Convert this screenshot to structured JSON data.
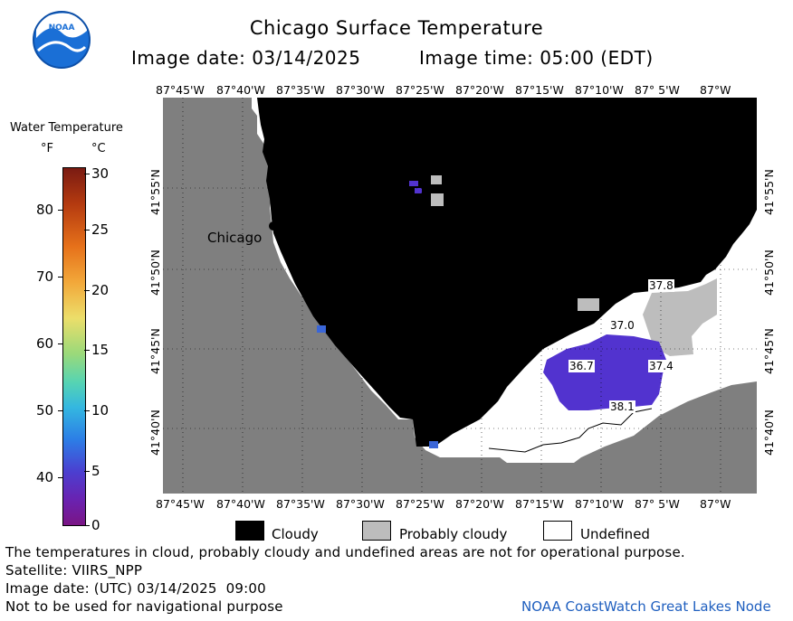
{
  "header": {
    "title": "Chicago Surface Temperature",
    "image_date_label": "Image date: 03/14/2025",
    "image_time_label": "Image time: 05:00 (EDT)"
  },
  "logo": {
    "text": "NOAA",
    "color": "#1a6fd6"
  },
  "colorbar": {
    "title": "Water Temperature",
    "unit_f": "°F",
    "unit_c": "°C",
    "f_ticks": [
      "80",
      "70",
      "60",
      "50",
      "40"
    ],
    "c_ticks": [
      "30",
      "25",
      "20",
      "15",
      "10",
      "5",
      "0"
    ]
  },
  "axes": {
    "lon_labels": [
      "87°45'W",
      "87°40'W",
      "87°35'W",
      "87°30'W",
      "87°25'W",
      "87°20'W",
      "87°15'W",
      "87°10'W",
      "87° 5'W",
      "87°W"
    ],
    "lat_labels": [
      "41°55'N",
      "41°50'N",
      "41°45'N",
      "41°40'N"
    ]
  },
  "map": {
    "city_label": "Chicago",
    "temperature_labels": [
      "37.8",
      "37.0",
      "36.7",
      "37.4",
      "38.1"
    ],
    "colors": {
      "land": "#7f7f7f",
      "cloudy": "#000000",
      "probably_cloudy": "#bdbdbd",
      "undefined": "#ffffff",
      "water": "#5233cf"
    }
  },
  "legend": {
    "cloudy": "Cloudy",
    "probably_cloudy": "Probably cloudy",
    "undefined": "Undefined"
  },
  "footer": {
    "line1": "The temperatures in cloud, probably cloudy and undefined areas are not for operational purpose.",
    "line2": "Satellite: VIIRS_NPP",
    "line3": "Image date: (UTC) 03/14/2025  09:00",
    "line4": "Not to be used for navigational purpose",
    "credit": "NOAA CoastWatch Great Lakes Node"
  }
}
